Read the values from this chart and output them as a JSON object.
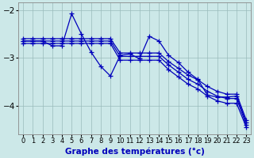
{
  "background_color": "#cce8e8",
  "line_color": "#0000bb",
  "grid_color": "#99bbbb",
  "ylim": [
    -4.6,
    -1.85
  ],
  "xlim": [
    -0.5,
    23.5
  ],
  "yticks": [
    -4,
    -3,
    -2
  ],
  "xticks": [
    0,
    1,
    2,
    3,
    4,
    5,
    6,
    7,
    8,
    9,
    10,
    11,
    12,
    13,
    14,
    15,
    16,
    17,
    18,
    19,
    20,
    21,
    22,
    23
  ],
  "xlabel": "Graphe des températures (°c)",
  "xlabel_fontsize": 7.5,
  "tick_fontsize": 6,
  "ytick_fontsize": 7.5,
  "marker": "+",
  "markersize": 4,
  "linewidth": 0.9,
  "series": [
    [
      0,
      -2.65,
      1,
      -2.65,
      2,
      -2.65,
      3,
      -2.65,
      4,
      -2.65,
      5,
      -2.65,
      6,
      -2.65,
      7,
      -2.65,
      8,
      -2.65,
      9,
      -2.65,
      10,
      -2.97,
      11,
      -2.97,
      12,
      -2.97,
      13,
      -2.97,
      14,
      -2.97,
      15,
      -3.15,
      16,
      -3.3,
      17,
      -3.45,
      18,
      -3.55,
      19,
      -3.7,
      20,
      -3.8,
      21,
      -3.85,
      22,
      -3.85,
      23,
      -4.4
    ],
    [
      0,
      -2.7,
      1,
      -2.7,
      2,
      -2.7,
      3,
      -2.7,
      4,
      -2.7,
      5,
      -2.7,
      6,
      -2.7,
      7,
      -2.7,
      8,
      -2.7,
      9,
      -2.7,
      10,
      -3.05,
      11,
      -3.05,
      12,
      -3.05,
      13,
      -3.05,
      14,
      -3.05,
      15,
      -3.25,
      16,
      -3.4,
      17,
      -3.55,
      18,
      -3.65,
      19,
      -3.8,
      20,
      -3.9,
      21,
      -3.95,
      22,
      -3.95,
      23,
      -4.45
    ],
    [
      0,
      -2.6,
      1,
      -2.6,
      2,
      -2.6,
      3,
      -2.6,
      4,
      -2.6,
      5,
      -2.6,
      6,
      -2.6,
      7,
      -2.6,
      8,
      -2.6,
      9,
      -2.6,
      10,
      -2.9,
      11,
      -2.9,
      12,
      -2.9,
      13,
      -2.9,
      14,
      -2.9,
      15,
      -3.08,
      16,
      -3.22,
      17,
      -3.36,
      18,
      -3.46,
      19,
      -3.6,
      20,
      -3.7,
      21,
      -3.76,
      22,
      -3.76,
      23,
      -4.3
    ],
    [
      0,
      -2.65,
      1,
      -2.65,
      2,
      -2.65,
      3,
      -2.75,
      4,
      -2.75,
      5,
      -2.08,
      6,
      -2.5,
      7,
      -2.88,
      8,
      -3.18,
      9,
      -3.38,
      10,
      -2.95,
      11,
      -2.92,
      12,
      -3.02,
      13,
      -2.55,
      14,
      -2.65,
      15,
      -2.95,
      16,
      -3.1,
      17,
      -3.3,
      18,
      -3.45,
      19,
      -3.78,
      20,
      -3.82,
      21,
      -3.82,
      22,
      -3.8,
      23,
      -4.35
    ]
  ]
}
